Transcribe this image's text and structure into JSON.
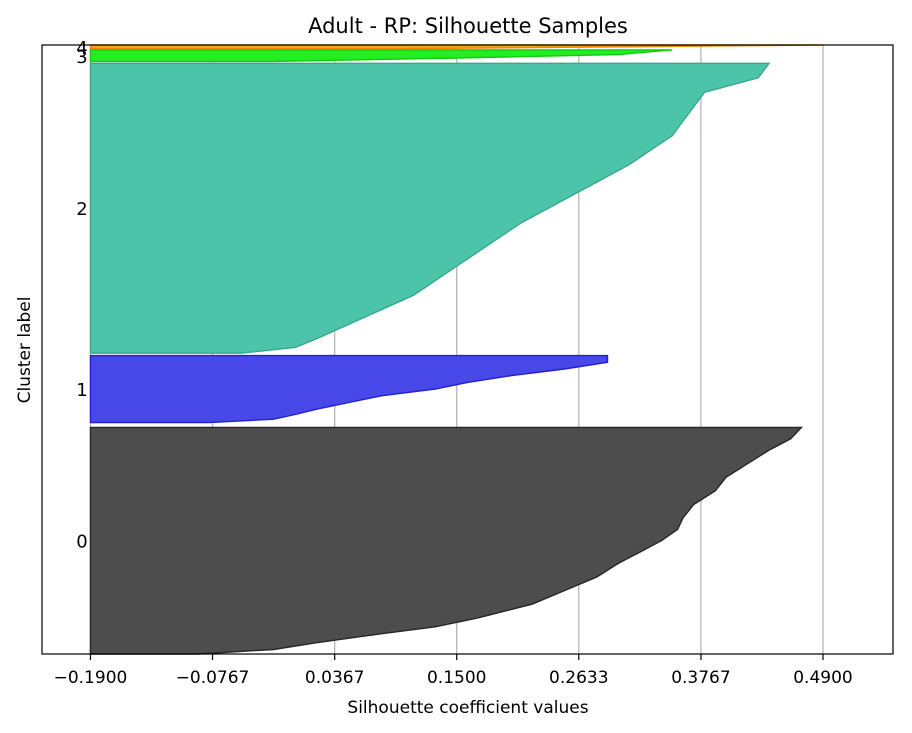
{
  "chart_data": {
    "type": "area",
    "title": "Adult - RP: Silhouette Samples",
    "xlabel": "Silhouette coefficient values",
    "ylabel": "Cluster label",
    "xlim": [
      -0.235,
      0.555
    ],
    "x_ticks": [
      "-0.1900",
      "-0.0767",
      "0.0367",
      "0.1500",
      "0.2633",
      "0.3767",
      "0.4900"
    ],
    "x_tick_values": [
      -0.19,
      -0.0767,
      0.0367,
      0.15,
      0.2633,
      0.3767,
      0.49
    ],
    "grid": "vertical",
    "ylim_samples": [
      0,
      1000
    ],
    "clusters": [
      {
        "label": "0",
        "color": "#4d4d4d",
        "edge": "#262626",
        "y_start": 0,
        "y_end": 372,
        "profile": [
          [
            0,
            -0.09
          ],
          [
            0.02,
            -0.02
          ],
          [
            0.05,
            0.02
          ],
          [
            0.08,
            0.065
          ],
          [
            0.12,
            0.13
          ],
          [
            0.16,
            0.17
          ],
          [
            0.22,
            0.22
          ],
          [
            0.28,
            0.25
          ],
          [
            0.34,
            0.28
          ],
          [
            0.4,
            0.3
          ],
          [
            0.45,
            0.32
          ],
          [
            0.5,
            0.34
          ],
          [
            0.55,
            0.355
          ],
          [
            0.6,
            0.36
          ],
          [
            0.66,
            0.37
          ],
          [
            0.72,
            0.39
          ],
          [
            0.78,
            0.4
          ],
          [
            0.84,
            0.42
          ],
          [
            0.9,
            0.44
          ],
          [
            0.95,
            0.46
          ],
          [
            1,
            0.47
          ]
        ]
      },
      {
        "label": "1",
        "color": "#4848e8",
        "edge": "#2020d0",
        "y_start": 380,
        "y_end": 490,
        "profile": [
          [
            0,
            -0.08
          ],
          [
            0.05,
            -0.02
          ],
          [
            0.12,
            0.0
          ],
          [
            0.2,
            0.02
          ],
          [
            0.3,
            0.05
          ],
          [
            0.4,
            0.08
          ],
          [
            0.5,
            0.13
          ],
          [
            0.6,
            0.16
          ],
          [
            0.7,
            0.2
          ],
          [
            0.8,
            0.25
          ],
          [
            0.9,
            0.29
          ],
          [
            1,
            0.29
          ]
        ]
      },
      {
        "label": "2",
        "color": "#4bc4aa",
        "edge": "#3aa88f",
        "y_start": 494,
        "y_end": 970,
        "profile": [
          [
            0,
            -0.05
          ],
          [
            0.02,
            0.0
          ],
          [
            0.05,
            0.02
          ],
          [
            0.1,
            0.05
          ],
          [
            0.15,
            0.08
          ],
          [
            0.2,
            0.11
          ],
          [
            0.25,
            0.13
          ],
          [
            0.3,
            0.15
          ],
          [
            0.35,
            0.17
          ],
          [
            0.4,
            0.19
          ],
          [
            0.45,
            0.21
          ],
          [
            0.5,
            0.235
          ],
          [
            0.55,
            0.26
          ],
          [
            0.6,
            0.285
          ],
          [
            0.65,
            0.31
          ],
          [
            0.7,
            0.33
          ],
          [
            0.75,
            0.35
          ],
          [
            0.8,
            0.36
          ],
          [
            0.85,
            0.37
          ],
          [
            0.9,
            0.38
          ],
          [
            0.95,
            0.43
          ],
          [
            1,
            0.44
          ]
        ]
      },
      {
        "label": "3",
        "color": "#22ee22",
        "edge": "#11cc11",
        "y_start": 973,
        "y_end": 992,
        "profile": [
          [
            0,
            -0.02
          ],
          [
            0.3,
            0.15
          ],
          [
            0.6,
            0.3
          ],
          [
            1,
            0.35
          ]
        ]
      },
      {
        "label": "4",
        "color": "#ffa31a",
        "edge": "#ee8800",
        "y_start": 994,
        "y_end": 1000,
        "profile": [
          [
            0,
            0.1
          ],
          [
            0.5,
            0.3
          ],
          [
            1,
            0.49
          ]
        ]
      }
    ],
    "cluster_label_positions": [
      186,
      435,
      732,
      982,
      997
    ]
  }
}
